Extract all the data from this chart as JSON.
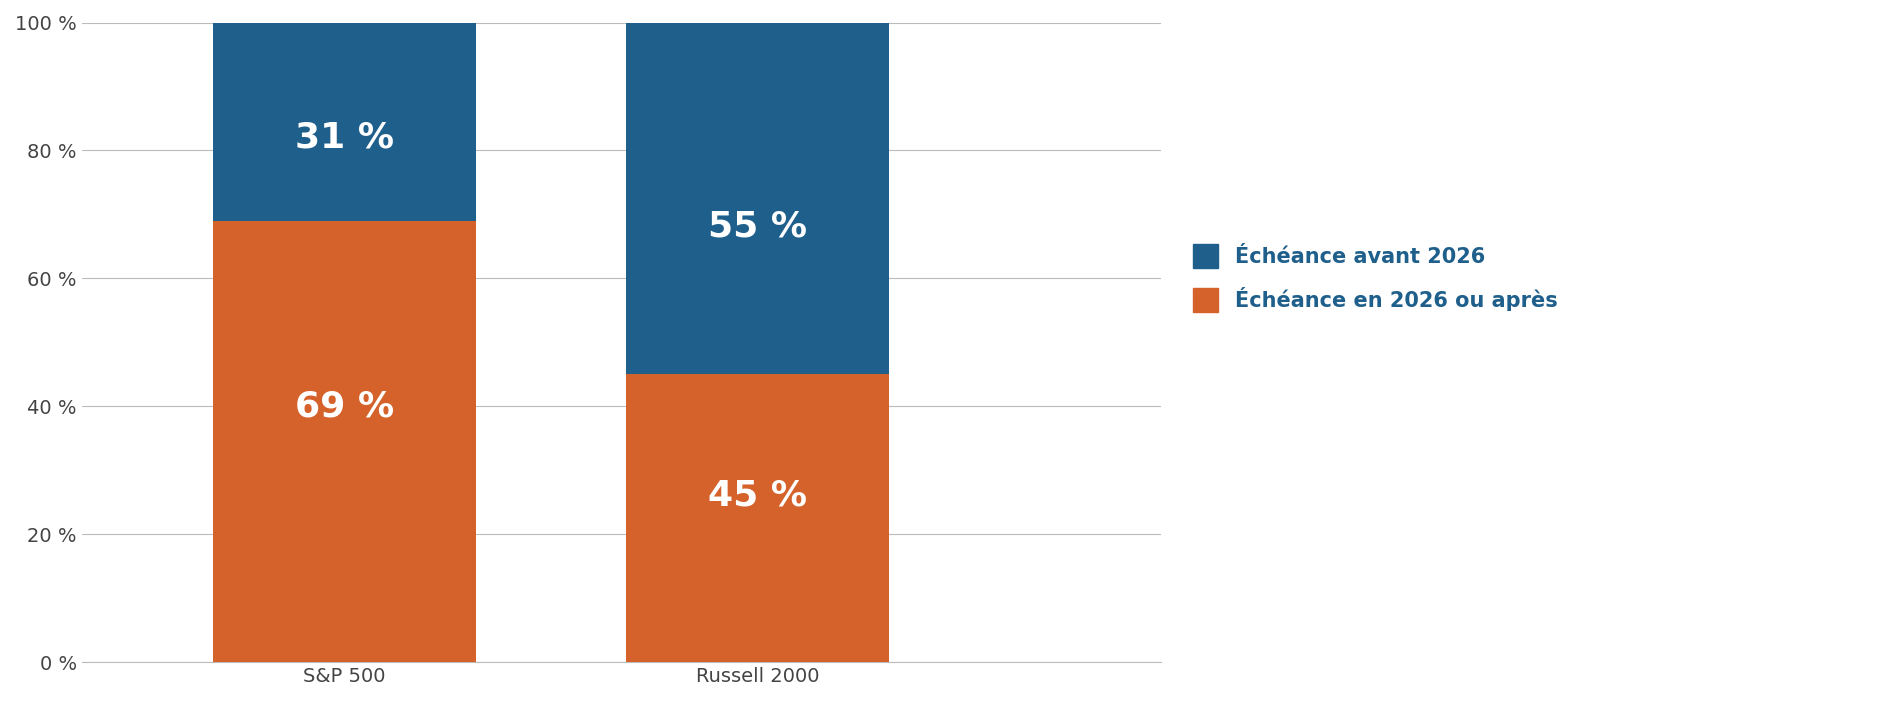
{
  "categories": [
    "S&P 500",
    "Russell 2000"
  ],
  "orange_values": [
    69,
    45
  ],
  "blue_values": [
    31,
    55
  ],
  "orange_labels": [
    "69 %",
    "45 %"
  ],
  "blue_labels": [
    "31 %",
    "55 %"
  ],
  "orange_color": "#D4622A",
  "blue_color": "#1F5F8B",
  "background_color": "#ffffff",
  "legend_labels": [
    "Échéance avant 2026",
    "Échéance en 2026 ou après"
  ],
  "ylim": [
    0,
    100
  ],
  "yticks": [
    0,
    20,
    40,
    60,
    80,
    100
  ],
  "ytick_labels": [
    "0 %",
    "20 %",
    "40 %",
    "60 %",
    "80 %",
    "100 %"
  ],
  "bar_width": 0.28,
  "label_fontsize": 26,
  "tick_fontsize": 14,
  "legend_fontsize": 15,
  "grid_color": "#bbbbbb",
  "text_color": "#ffffff",
  "legend_text_color": "#1F5F8B",
  "x_positions": [
    0.28,
    0.72
  ],
  "xlim": [
    0.0,
    1.15
  ]
}
